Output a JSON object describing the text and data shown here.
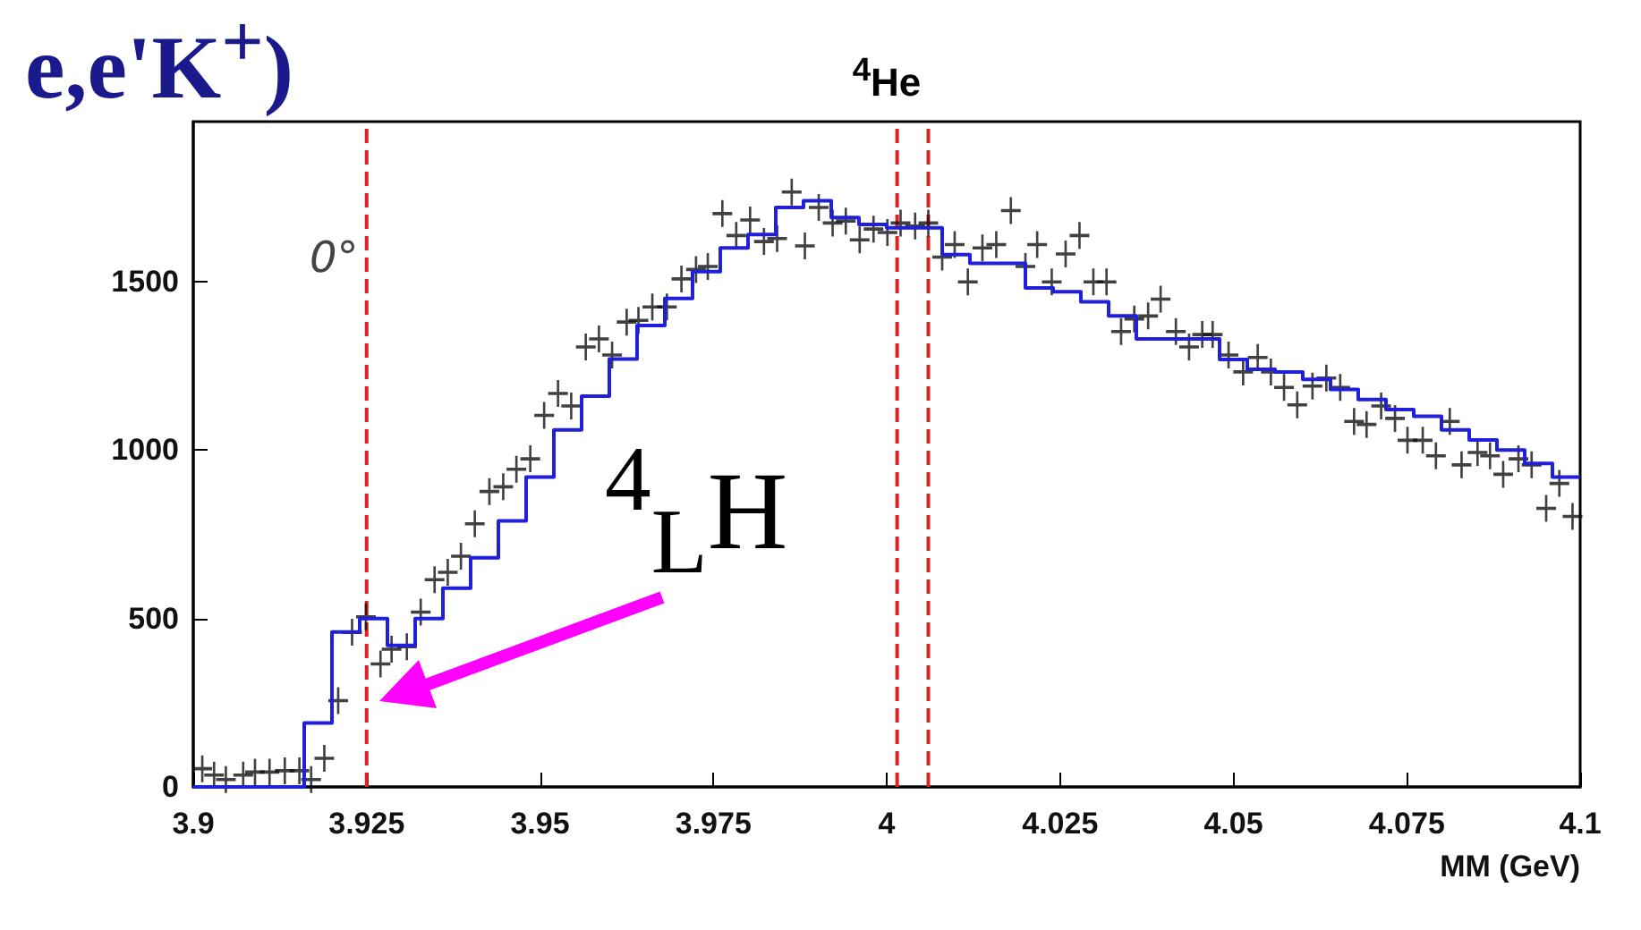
{
  "chart_data": {
    "type": "scatter",
    "title": "$^{4}$He",
    "xlabel": "MM (GeV)",
    "xlim": [
      3.9,
      4.1
    ],
    "xticks": [
      3.9,
      3.925,
      3.95,
      3.975,
      4,
      4.025,
      4.05,
      4.075,
      4.1
    ],
    "ylim": [
      0,
      1975
    ],
    "yticks": [
      0,
      500,
      1000,
      1500
    ],
    "grid": false,
    "ref_lines": [
      {
        "axis": "x",
        "value": 3.925,
        "color": "#dd2222",
        "line_style": "dashed"
      },
      {
        "axis": "x",
        "value": 4.0015,
        "label": null,
        "color": "#dd2222",
        "line_style": "dashed"
      },
      {
        "axis": "x",
        "value": 4.006,
        "label": null,
        "color": "#dd2222",
        "line_style": "dashed"
      }
    ],
    "annotations": [
      "e,e'K$^{+}$)",
      "0°",
      "$^{4}$$_{L}$H"
    ],
    "series": [
      {
        "type": "histogram",
        "color": "#1f1fdc",
        "marker": "none",
        "bins": [
          3.9,
          3.904,
          3.908,
          3.912,
          3.916,
          3.92,
          3.924,
          3.928,
          3.932,
          3.936,
          3.94,
          3.944,
          3.948,
          3.952,
          3.956,
          3.96,
          3.964,
          3.968,
          3.972,
          3.976,
          3.98,
          3.984,
          3.988,
          3.992,
          3.996,
          4,
          4.004,
          4.008,
          4.012,
          4.016,
          4.02,
          4.024,
          4.028,
          4.032,
          4.036,
          4.04,
          4.044,
          4.048,
          4.052,
          4.056,
          4.06,
          4.064,
          4.068,
          4.072,
          4.076,
          4.08,
          4.084,
          4.088,
          4.092,
          4.096,
          4.1
        ],
        "values": [
          0,
          0,
          0,
          0,
          190,
          460,
          500,
          420,
          500,
          590,
          680,
          790,
          920,
          1060,
          1160,
          1270,
          1370,
          1450,
          1530,
          1600,
          1640,
          1720,
          1740,
          1690,
          1670,
          1660,
          1660,
          1580,
          1554,
          1554,
          1481,
          1470,
          1440,
          1398,
          1330,
          1330,
          1330,
          1269,
          1240,
          1232,
          1210,
          1180,
          1150,
          1120,
          1100,
          1060,
          1030,
          1000,
          960,
          920
        ]
      },
      {
        "color": "#111111",
        "marker": "cross",
        "x": [
          3.9013,
          3.903,
          3.9047,
          3.9072,
          3.9089,
          3.911,
          3.9132,
          3.9153,
          3.917,
          3.9189,
          3.9209,
          3.9229,
          3.9249,
          3.927,
          3.9286,
          3.9308,
          3.9328,
          3.9348,
          3.9367,
          3.9386,
          3.9406,
          3.9427,
          3.9447,
          3.9466,
          3.9486,
          3.9506,
          3.9526,
          3.9545,
          3.9566,
          3.9585,
          3.9604,
          3.9625,
          3.9642,
          3.9662,
          3.9683,
          3.9704,
          3.9725,
          3.9742,
          3.9763,
          3.9783,
          3.9803,
          3.9823,
          3.9842,
          3.9863,
          3.9882,
          3.9902,
          3.9922,
          3.9941,
          3.9961,
          3.9981,
          4.0001,
          4.002,
          4.0041,
          4.006,
          4.008,
          4.0098,
          4.0117,
          4.0138,
          4.0158,
          4.0179,
          4.02,
          4.0217,
          4.0238,
          4.0258,
          4.0278,
          4.0298,
          4.0317,
          4.0338,
          4.0357,
          4.0377,
          4.0395,
          4.0417,
          4.0436,
          4.0455,
          4.047,
          4.0493,
          4.0514,
          4.0535,
          4.0554,
          4.0573,
          4.0592,
          4.0614,
          4.0634,
          4.0654,
          4.0674,
          4.0692,
          4.0713,
          4.0733,
          4.0751,
          4.0773,
          4.0792,
          4.0812,
          4.0829,
          4.0852,
          4.087,
          4.0889,
          4.0911,
          4.093,
          4.0951,
          4.097,
          4.0989
        ],
        "values": [
          54,
          35,
          22,
          35,
          44,
          44,
          48,
          48,
          22,
          85,
          256,
          459,
          505,
          365,
          409,
          416,
          519,
          615,
          637,
          685,
          781,
          877,
          891,
          943,
          974,
          1103,
          1168,
          1131,
          1306,
          1330,
          1282,
          1380,
          1385,
          1425,
          1425,
          1508,
          1536,
          1545,
          1702,
          1637,
          1683,
          1619,
          1628,
          1766,
          1606,
          1720,
          1674,
          1680,
          1624,
          1656,
          1646,
          1674,
          1665,
          1674,
          1573,
          1610,
          1499,
          1600,
          1610,
          1711,
          1545,
          1610,
          1499,
          1582,
          1637,
          1499,
          1499,
          1352,
          1389,
          1398,
          1448,
          1352,
          1306,
          1343,
          1343,
          1282,
          1232,
          1275,
          1232,
          1186,
          1134,
          1190,
          1214,
          1186,
          1085,
          1076,
          1131,
          1094,
          1029,
          1029,
          983,
          1085,
          956,
          993,
          983,
          928,
          974,
          956,
          827,
          901,
          803
        ]
      }
    ]
  }
}
